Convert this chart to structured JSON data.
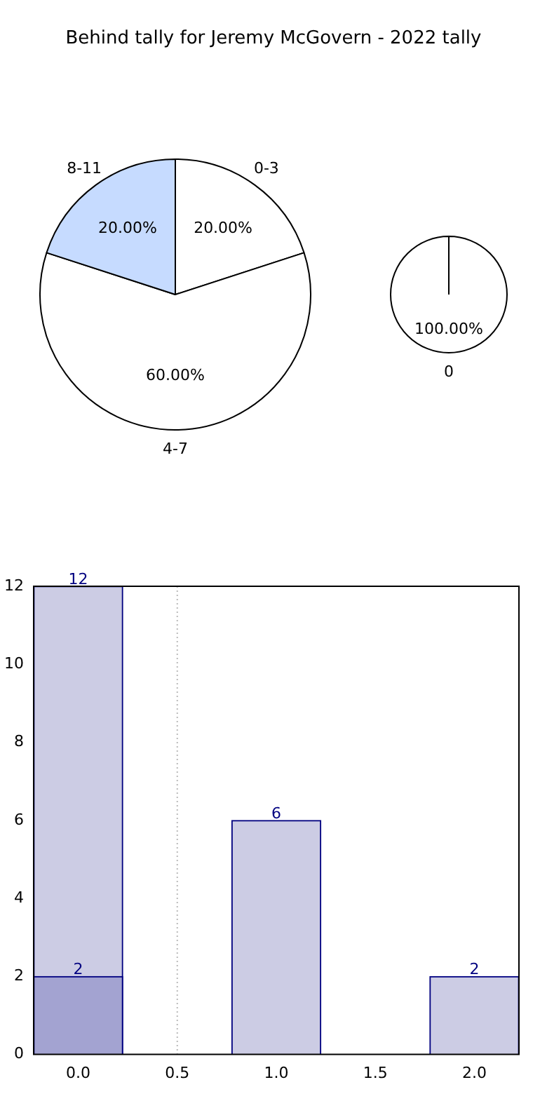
{
  "chart_data": [
    {
      "type": "pie",
      "title": "Behind tally for Jeremy McGovern - 2022 tally",
      "categories": [
        "0-3",
        "4-7",
        "8-11"
      ],
      "values": [
        20,
        60,
        20
      ],
      "colors": [
        "#ffffff",
        "#ffffff",
        "#c6dbff"
      ],
      "value_labels": [
        "20.00%",
        "60.00%",
        "20.00%"
      ]
    },
    {
      "type": "pie",
      "categories": [
        "0"
      ],
      "values": [
        100
      ],
      "colors": [
        "#ffffff"
      ],
      "value_labels": [
        "100.00%"
      ]
    },
    {
      "type": "bar",
      "series": [
        {
          "x": [
            0,
            1,
            2
          ],
          "values": [
            12,
            6,
            2
          ],
          "color": "#ccccE4"
        },
        {
          "x": [
            0
          ],
          "values": [
            2
          ],
          "color": "#a3a3d1"
        }
      ],
      "xlim": [
        -0.225,
        2.225
      ],
      "xticks": [
        {
          "value": 0,
          "label": "0.0"
        },
        {
          "value": 0.5,
          "label": "0.5"
        },
        {
          "value": 1,
          "label": "1.0"
        },
        {
          "value": 1.5,
          "label": "1.5"
        },
        {
          "value": 2,
          "label": "2.0"
        }
      ],
      "ylim": [
        0,
        12
      ],
      "yticks": [
        0,
        2,
        4,
        6,
        8,
        10,
        12
      ],
      "grid": false,
      "data_labels": true,
      "ref_lines": [
        {
          "axis": "x",
          "value": 0.5,
          "color": "#bbbbbb",
          "line_style": "dotted"
        }
      ]
    }
  ]
}
